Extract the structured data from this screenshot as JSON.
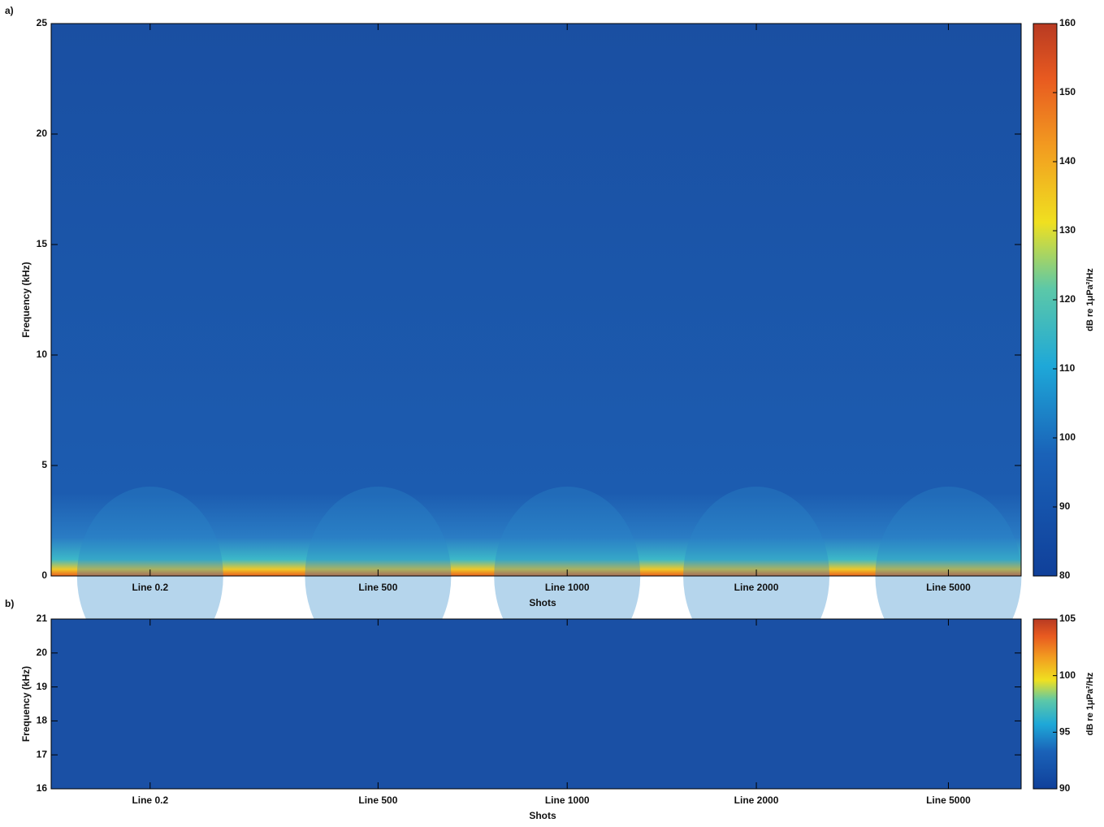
{
  "chart_data": [
    {
      "type": "heatmap",
      "panel_label": "a)",
      "ylabel": "Frequency (kHz)",
      "xlabel": "Shots",
      "categories": [
        "Line 0.2",
        "Line 500",
        "Line 1000",
        "Line 2000",
        "Line 5000"
      ],
      "ylim": [
        0,
        25
      ],
      "yticks": [
        0,
        5,
        10,
        15,
        20,
        25
      ],
      "colormap": "jet",
      "clim": [
        80,
        160
      ],
      "cticks": [
        80,
        90,
        100,
        110,
        120,
        130,
        140,
        150,
        160
      ],
      "clabel": "dB re 1μPa²/Hz"
    },
    {
      "type": "heatmap",
      "panel_label": "b)",
      "ylabel": "Frequency (kHz)",
      "xlabel": "Shots",
      "categories": [
        "Line 0.2",
        "Line 500",
        "Line 1000",
        "Line 2000",
        "Line 5000"
      ],
      "ylim": [
        16,
        21
      ],
      "yticks": [
        16,
        17,
        18,
        19,
        20,
        21
      ],
      "colormap": "jet",
      "clim": [
        90,
        105
      ],
      "cticks": [
        90,
        95,
        100,
        105
      ],
      "clabel": "dB re 1μPa²/Hz"
    }
  ]
}
